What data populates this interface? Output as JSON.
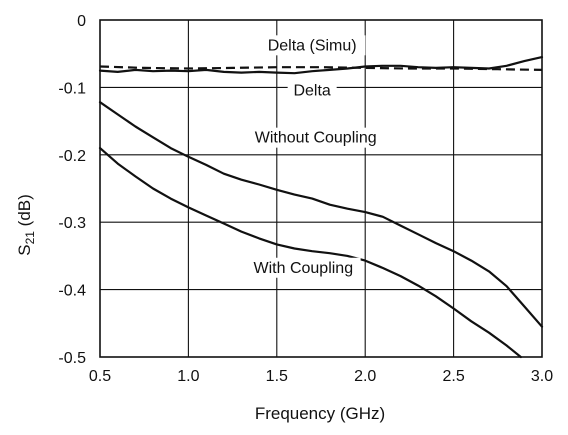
{
  "chart_data": {
    "type": "line",
    "title": "",
    "xlabel": "Frequency (GHz)",
    "ylabel": {
      "base": "S",
      "sub": "21",
      "unit": " (dB)"
    },
    "xlim": [
      0.5,
      3.0
    ],
    "ylim": [
      -0.5,
      0
    ],
    "xticks": [
      "0.5",
      "1.0",
      "1.5",
      "2.0",
      "2.5",
      "3.0"
    ],
    "yticks": [
      "0",
      "-0.1",
      "-0.2",
      "-0.3",
      "-0.4",
      "-0.5"
    ],
    "grid": true,
    "series": [
      {
        "name": "Delta (Simu)",
        "style": "dashed",
        "color": "#111111",
        "x": [
          0.5,
          0.75,
          1.0,
          1.25,
          1.5,
          1.75,
          2.0,
          2.25,
          2.5,
          2.75,
          3.0
        ],
        "y": [
          -0.069,
          -0.071,
          -0.072,
          -0.071,
          -0.07,
          -0.07,
          -0.071,
          -0.072,
          -0.072,
          -0.073,
          -0.074
        ]
      },
      {
        "name": "Delta",
        "style": "solid",
        "color": "#111111",
        "x": [
          0.5,
          0.6,
          0.7,
          0.8,
          0.9,
          1.0,
          1.1,
          1.2,
          1.3,
          1.4,
          1.5,
          1.6,
          1.7,
          1.8,
          1.9,
          2.0,
          2.1,
          2.2,
          2.3,
          2.4,
          2.5,
          2.6,
          2.7,
          2.8,
          2.9,
          3.0
        ],
        "y": [
          -0.075,
          -0.077,
          -0.074,
          -0.076,
          -0.075,
          -0.076,
          -0.074,
          -0.077,
          -0.078,
          -0.077,
          -0.078,
          -0.079,
          -0.076,
          -0.074,
          -0.072,
          -0.069,
          -0.068,
          -0.068,
          -0.07,
          -0.071,
          -0.07,
          -0.071,
          -0.072,
          -0.068,
          -0.061,
          -0.055
        ]
      },
      {
        "name": "Without Coupling",
        "style": "solid",
        "color": "#111111",
        "x": [
          0.5,
          0.6,
          0.7,
          0.8,
          0.9,
          1.0,
          1.1,
          1.2,
          1.3,
          1.4,
          1.5,
          1.6,
          1.7,
          1.8,
          1.9,
          2.0,
          2.1,
          2.2,
          2.3,
          2.4,
          2.5,
          2.6,
          2.7,
          2.8,
          2.9,
          3.0
        ],
        "y": [
          -0.122,
          -0.14,
          -0.158,
          -0.174,
          -0.19,
          -0.203,
          -0.215,
          -0.228,
          -0.237,
          -0.244,
          -0.252,
          -0.259,
          -0.265,
          -0.274,
          -0.28,
          -0.285,
          -0.292,
          -0.305,
          -0.318,
          -0.331,
          -0.343,
          -0.357,
          -0.373,
          -0.395,
          -0.425,
          -0.455
        ]
      },
      {
        "name": "With Coupling",
        "style": "solid",
        "color": "#111111",
        "x": [
          0.5,
          0.6,
          0.7,
          0.8,
          0.9,
          1.0,
          1.1,
          1.2,
          1.3,
          1.4,
          1.5,
          1.6,
          1.7,
          1.8,
          1.9,
          2.0,
          2.1,
          2.2,
          2.3,
          2.4,
          2.5,
          2.6,
          2.7,
          2.8,
          2.88
        ],
        "y": [
          -0.19,
          -0.213,
          -0.232,
          -0.25,
          -0.265,
          -0.278,
          -0.29,
          -0.302,
          -0.314,
          -0.324,
          -0.333,
          -0.339,
          -0.343,
          -0.346,
          -0.35,
          -0.357,
          -0.368,
          -0.38,
          -0.394,
          -0.41,
          -0.428,
          -0.447,
          -0.464,
          -0.483,
          -0.5
        ]
      }
    ],
    "annotations": [
      {
        "text": "Delta (Simu)",
        "x": 1.7,
        "y": -0.045
      },
      {
        "text": "Delta",
        "x": 1.7,
        "y": -0.112
      },
      {
        "text": "Without Coupling",
        "x": 1.72,
        "y": -0.182
      },
      {
        "text": "With Coupling",
        "x": 1.65,
        "y": -0.375
      }
    ]
  }
}
